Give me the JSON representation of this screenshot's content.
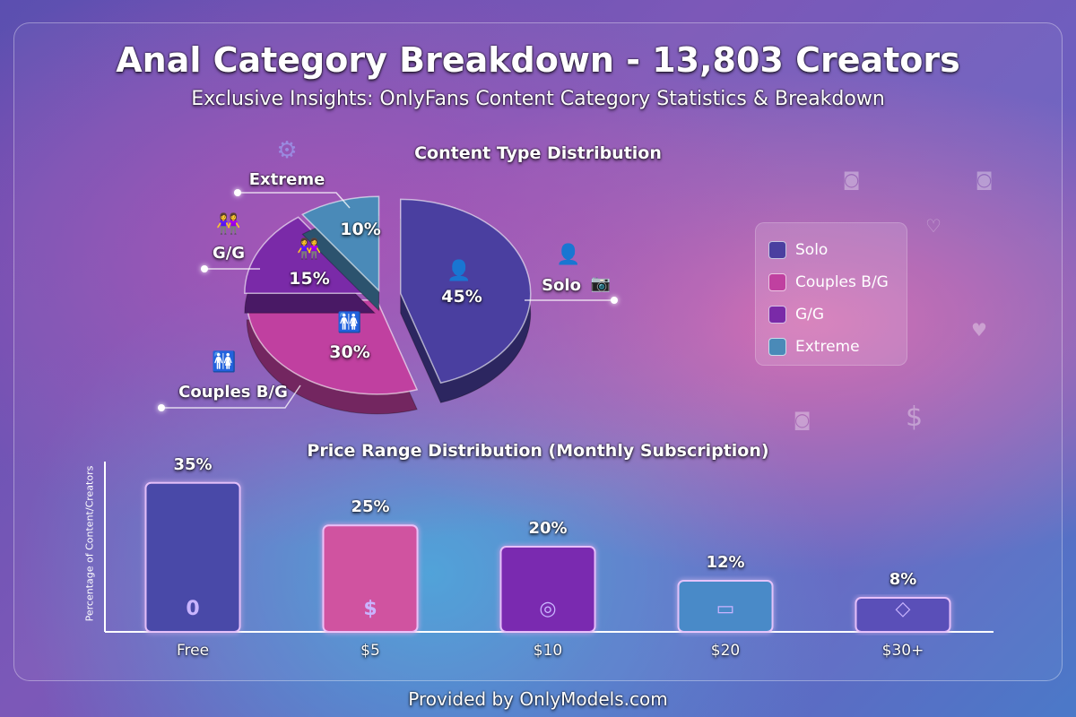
{
  "title": "Anal Category Breakdown - 13,803 Creators",
  "subtitle": "Exclusive Insights: OnlyFans Content Category Statistics & Breakdown",
  "footer": "Provided by OnlyModels.com",
  "chart_data": [
    {
      "type": "pie",
      "title": "Content Type Distribution",
      "slices": [
        {
          "label": "Solo",
          "value": 45,
          "display": "45%",
          "color": "#4a3fa0",
          "icon": "person-camera-icon"
        },
        {
          "label": "Couples B/G",
          "value": 30,
          "display": "30%",
          "color": "#c040a0",
          "icon": "couple-icon"
        },
        {
          "label": "G/G",
          "value": 15,
          "display": "15%",
          "color": "#7a2aa8",
          "icon": "two-women-icon"
        },
        {
          "label": "Extreme",
          "value": 10,
          "display": "10%",
          "color": "#4a8ab8",
          "icon": "gear-bolt-icon"
        }
      ],
      "legend": "right"
    },
    {
      "type": "bar",
      "title": "Price Range Distribution (Monthly Subscription)",
      "ylabel": "Percentage of Content/Creators",
      "categories": [
        "Free",
        "$5",
        "$10",
        "$20",
        "$30+"
      ],
      "values": [
        35,
        25,
        20,
        12,
        8
      ],
      "data_labels": [
        "35%",
        "25%",
        "20%",
        "12%",
        "8%"
      ],
      "colors": [
        "#4a4aa8",
        "#d053a0",
        "#7a2ab0",
        "#4a8ac8",
        "#5a4fb8"
      ],
      "icons": [
        "zero-icon",
        "dollar-icon",
        "coins-icon",
        "credit-card-icon",
        "diamond-icon"
      ],
      "icon_glyphs": [
        "0",
        "$",
        "◎",
        "▭",
        "◇"
      ],
      "ylim": [
        0,
        40
      ],
      "grid": false
    }
  ]
}
